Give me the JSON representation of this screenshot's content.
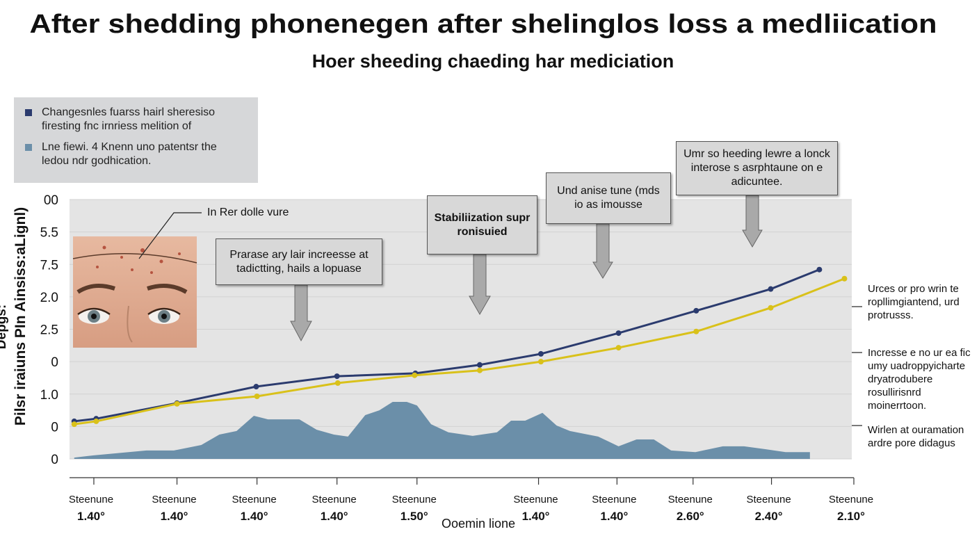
{
  "title": "After shedding phonenegen after shelinglos loss a medliication",
  "subtitle": "Hoer sheeding chaeding har mediciation",
  "chart_data": {
    "type": "line",
    "ylabel": "Pilsr iraiuns PIn Ainsiss:aLignl)",
    "ylabel_top": "Depgs:",
    "xlabel": "Ooemin lione",
    "xlim": [
      0,
      100
    ],
    "ylim": [
      0,
      8
    ],
    "grid": true,
    "legend": "upper left",
    "xticks": [
      {
        "value": 3.1,
        "name": "Steenune",
        "label": "1.40°"
      },
      {
        "value": 13.7,
        "name": "Steenune",
        "label": "1.40°"
      },
      {
        "value": 23.9,
        "name": "Steenune",
        "label": "1.40°"
      },
      {
        "value": 34.1,
        "name": "Steenune",
        "label": "1.40°"
      },
      {
        "value": 44.3,
        "name": "Steenune",
        "label": "1.50°"
      },
      {
        "value": 59.8,
        "name": "Steenune",
        "label": "1.40°"
      },
      {
        "value": 69.8,
        "name": "Steenune",
        "label": "1.40°"
      },
      {
        "value": 79.5,
        "name": "Steenune",
        "label": "2.60°"
      },
      {
        "value": 89.5,
        "name": "Steenune",
        "label": "2.40°"
      },
      {
        "value": 100,
        "name": "Steenune",
        "label": "2.10°"
      }
    ],
    "yticks": [
      {
        "value": 8,
        "label": "00"
      },
      {
        "value": 7,
        "label": "5.5"
      },
      {
        "value": 6,
        "label": "7.5"
      },
      {
        "value": 5,
        "label": "2.0"
      },
      {
        "value": 4,
        "label": "2.5"
      },
      {
        "value": 3,
        "label": "0"
      },
      {
        "value": 2,
        "label": "1.0"
      },
      {
        "value": 1,
        "label": "0"
      },
      0
    ],
    "series": [
      {
        "name": "Changesnles fuarss hairl sheresiso firesting fnc irnriess melition of",
        "color": "#2b3b6e",
        "style": "line",
        "x": [
          0.6,
          3.4,
          13.7,
          23.8,
          34.1,
          44.1,
          52.3,
          60.1,
          70,
          79.9,
          89.4,
          95.6
        ],
        "values": [
          1.16,
          1.24,
          1.72,
          2.23,
          2.55,
          2.64,
          2.9,
          3.24,
          3.88,
          4.57,
          5.24,
          5.84
        ]
      },
      {
        "name": "Lne fiewi. 4 Knenn uno patentsr the ledou ndr godhication.",
        "color": "#6b8fa9",
        "style": "area",
        "x": [
          0.6,
          3.1,
          9.8,
          13.3,
          16.8,
          19.1,
          21.3,
          23.5,
          25.3,
          29.3,
          31.5,
          33.7,
          35.5,
          37.7,
          39.5,
          41.2,
          43.0,
          44.3,
          46.1,
          48.3,
          51.4,
          54.5,
          56.3,
          58.1,
          60.3,
          62.1,
          63.8,
          67.4,
          70.0,
          72.3,
          74.5,
          76.7,
          79.8,
          83.3,
          86.0,
          88.7,
          91.3,
          94.4
        ],
        "values": [
          0.04,
          0.11,
          0.26,
          0.26,
          0.43,
          0.75,
          0.86,
          1.33,
          1.22,
          1.22,
          0.9,
          0.75,
          0.69,
          1.35,
          1.5,
          1.76,
          1.76,
          1.65,
          1.07,
          0.82,
          0.71,
          0.82,
          1.18,
          1.18,
          1.42,
          1.03,
          0.86,
          0.69,
          0.39,
          0.6,
          0.6,
          0.26,
          0.21,
          0.39,
          0.39,
          0.3,
          0.21,
          0.21
        ]
      },
      {
        "color": "#d9c11a",
        "style": "line",
        "x": [
          0.6,
          3.4,
          13.7,
          23.9,
          34.2,
          44.0,
          52.3,
          60.1,
          70,
          79.9,
          89.4,
          98.8
        ],
        "values": [
          1.07,
          1.16,
          1.7,
          1.93,
          2.34,
          2.58,
          2.73,
          3.0,
          3.43,
          3.93,
          4.66,
          5.56
        ]
      }
    ],
    "annotations": [
      "In Rer dolle vure",
      "Prarase ary lair increesse at tadictting, hails a lopuase",
      "Stabiliization supr ronisuied",
      "Und anise tune (mds io as imousse",
      "Umr so heeding lewre a lonck interose s asrphtaune on e adicuntee."
    ],
    "notes": [
      "Urces or pro wrin te ropllimgiantend, urd protrusss.",
      "Incresse e no ur ea fic umy uadroppyicharte dryatrodubere rosullirisnrd moinerrtoon.",
      "Wirlen at ouramation ardre pore didagus"
    ]
  }
}
